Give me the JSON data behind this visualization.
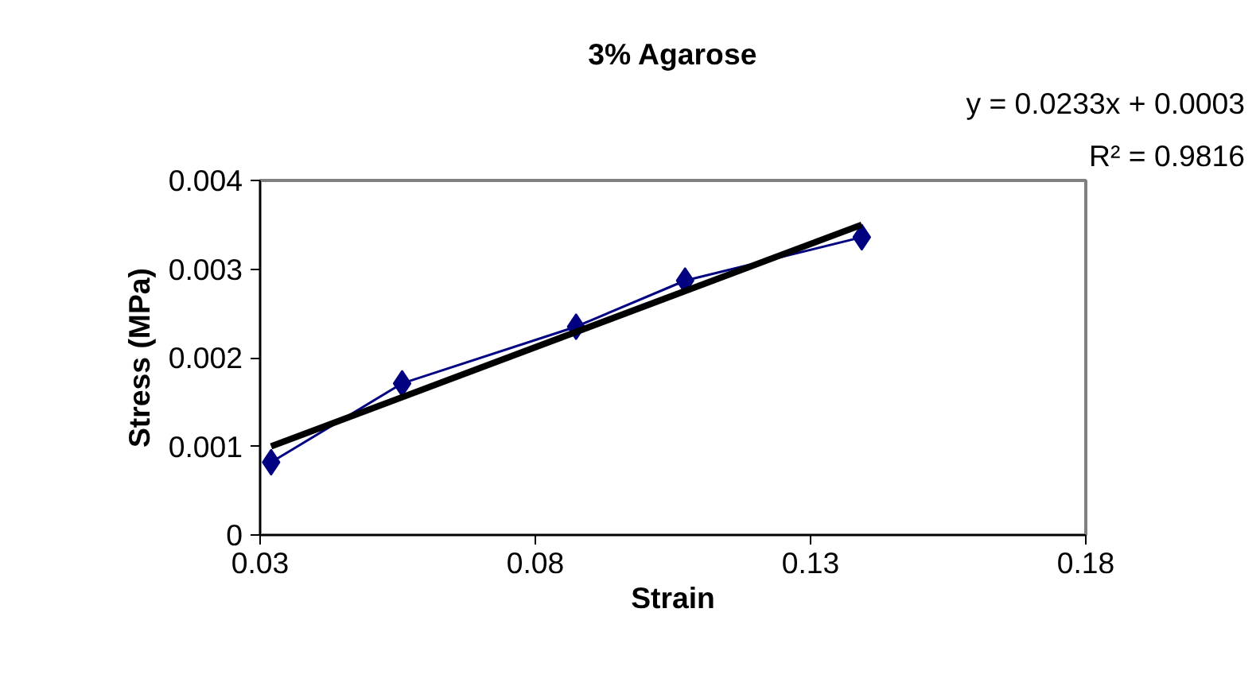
{
  "chart_data": {
    "type": "line",
    "title": "3% Agarose",
    "xlabel": "Strain",
    "ylabel": "Stress (MPa)",
    "annotations": [
      "y = 0.0233x + 0.0003",
      "R² = 0.9816"
    ],
    "series": [
      {
        "color": "#000080",
        "x": [
          0.032,
          0.0558,
          0.0874,
          0.1072,
          0.1393
        ],
        "values": [
          0.00082,
          0.00171,
          0.00235,
          0.00287,
          0.00336
        ],
        "marker": "diamond"
      },
      {
        "type": "line",
        "color": "#000000",
        "x": [
          0.032,
          0.1393
        ],
        "values": [
          0.001,
          0.0035
        ],
        "marker": "none"
      }
    ],
    "xlim": [
      0.03,
      0.18
    ],
    "xticks": [
      0.03,
      0.08,
      0.13,
      0.18
    ],
    "ylim": [
      0,
      0.004
    ],
    "yticks": [
      {
        "value": 0,
        "label": "0"
      },
      0.001,
      0.002,
      0.003,
      0.004
    ],
    "grid": false
  }
}
